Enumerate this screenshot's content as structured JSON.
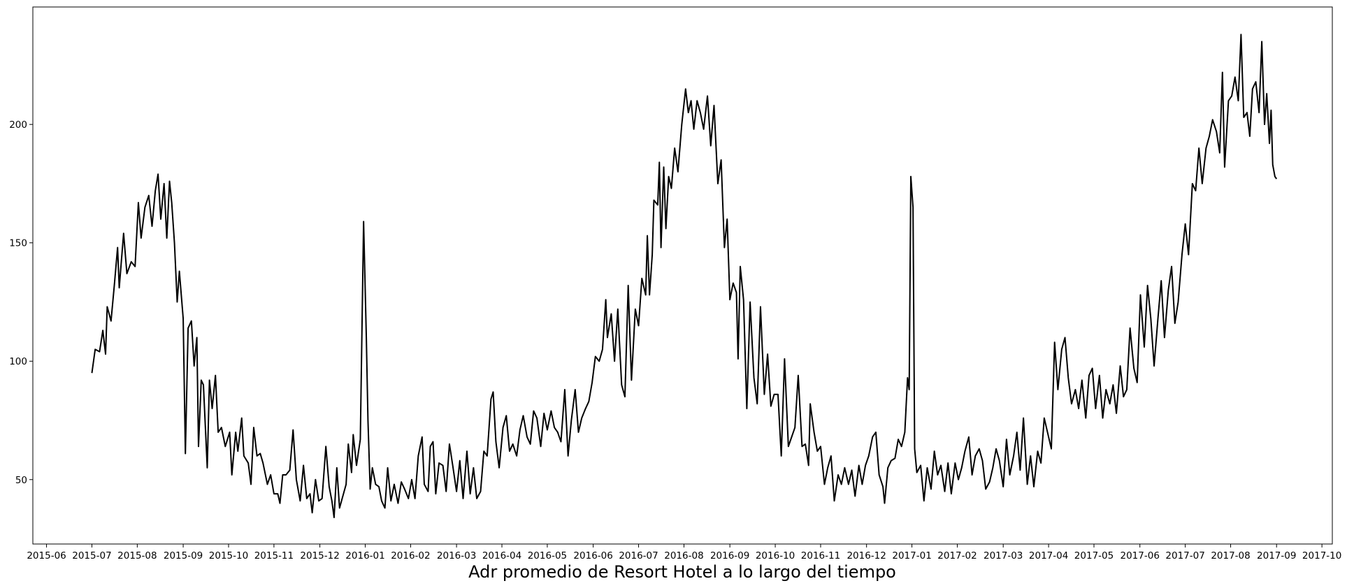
{
  "chart_data": {
    "type": "line",
    "xlabel": "Adr promedio de Resort Hotel a lo largo del tiempo",
    "color": "#000000",
    "xlim": [
      2015.392,
      2017.769
    ],
    "ylim": [
      22.8,
      249.6
    ],
    "xticks": [
      {
        "value": 2015.417,
        "label": "2015-06"
      },
      {
        "value": 2015.5,
        "label": "2015-07"
      },
      {
        "value": 2015.583,
        "label": "2015-08"
      },
      {
        "value": 2015.667,
        "label": "2015-09"
      },
      {
        "value": 2015.75,
        "label": "2015-10"
      },
      {
        "value": 2015.833,
        "label": "2015-11"
      },
      {
        "value": 2015.917,
        "label": "2015-12"
      },
      {
        "value": 2016.0,
        "label": "2016-01"
      },
      {
        "value": 2016.083,
        "label": "2016-02"
      },
      {
        "value": 2016.167,
        "label": "2016-03"
      },
      {
        "value": 2016.25,
        "label": "2016-04"
      },
      {
        "value": 2016.333,
        "label": "2016-05"
      },
      {
        "value": 2016.417,
        "label": "2016-06"
      },
      {
        "value": 2016.5,
        "label": "2016-07"
      },
      {
        "value": 2016.583,
        "label": "2016-08"
      },
      {
        "value": 2016.667,
        "label": "2016-09"
      },
      {
        "value": 2016.75,
        "label": "2016-10"
      },
      {
        "value": 2016.833,
        "label": "2016-11"
      },
      {
        "value": 2016.917,
        "label": "2016-12"
      },
      {
        "value": 2017.0,
        "label": "2017-01"
      },
      {
        "value": 2017.083,
        "label": "2017-02"
      },
      {
        "value": 2017.167,
        "label": "2017-03"
      },
      {
        "value": 2017.25,
        "label": "2017-04"
      },
      {
        "value": 2017.333,
        "label": "2017-05"
      },
      {
        "value": 2017.417,
        "label": "2017-06"
      },
      {
        "value": 2017.5,
        "label": "2017-07"
      },
      {
        "value": 2017.583,
        "label": "2017-08"
      },
      {
        "value": 2017.667,
        "label": "2017-09"
      },
      {
        "value": 2017.75,
        "label": "2017-10"
      }
    ],
    "yticks": [
      50,
      100,
      150,
      200
    ],
    "x": [
      2015.5,
      2015.506,
      2015.514,
      2015.52,
      2015.525,
      2015.528,
      2015.535,
      2015.541,
      2015.547,
      2015.55,
      2015.558,
      2015.564,
      2015.572,
      2015.579,
      2015.585,
      2015.59,
      2015.597,
      2015.604,
      2015.61,
      2015.616,
      2015.621,
      2015.626,
      2015.632,
      2015.637,
      2015.642,
      2015.646,
      2015.651,
      2015.656,
      2015.66,
      2015.667,
      2015.671,
      2015.676,
      2015.682,
      2015.687,
      2015.692,
      2015.695,
      2015.7,
      2015.704,
      2015.711,
      2015.715,
      2015.72,
      2015.726,
      2015.731,
      2015.737,
      2015.744,
      2015.752,
      2015.756,
      2015.763,
      2015.767,
      2015.774,
      2015.778,
      2015.786,
      2015.791,
      2015.796,
      2015.802,
      2015.808,
      2015.813,
      2015.821,
      2015.827,
      2015.833,
      2015.84,
      2015.844,
      2015.849,
      2015.855,
      2015.862,
      2015.868,
      2015.874,
      2015.881,
      2015.887,
      2015.893,
      2015.899,
      2015.903,
      2015.909,
      2015.915,
      2015.921,
      2015.928,
      2015.934,
      2015.939,
      2015.943,
      2015.948,
      2015.953,
      2015.959,
      2015.965,
      2015.969,
      2015.975,
      2015.978,
      2015.984,
      2015.991,
      2015.997,
      2016.002,
      2016.005,
      2016.009,
      2016.013,
      2016.019,
      2016.025,
      2016.03,
      2016.036,
      2016.041,
      2016.047,
      2016.053,
      2016.06,
      2016.066,
      2016.072,
      2016.079,
      2016.085,
      2016.091,
      2016.097,
      2016.104,
      2016.108,
      2016.115,
      2016.119,
      2016.124,
      2016.129,
      2016.135,
      2016.142,
      2016.148,
      2016.154,
      2016.16,
      2016.167,
      2016.173,
      2016.179,
      2016.186,
      2016.192,
      2016.198,
      2016.204,
      2016.211,
      2016.217,
      2016.223,
      2016.23,
      2016.234,
      2016.239,
      2016.245,
      2016.252,
      2016.258,
      2016.264,
      2016.27,
      2016.277,
      2016.283,
      2016.289,
      2016.296,
      2016.302,
      2016.308,
      2016.314,
      2016.321,
      2016.327,
      2016.333,
      2016.34,
      2016.346,
      2016.352,
      2016.358,
      2016.365,
      2016.371,
      2016.377,
      2016.384,
      2016.39,
      2016.396,
      2016.403,
      2016.409,
      2016.415,
      2016.421,
      2016.428,
      2016.434,
      2016.44,
      2016.443,
      2016.45,
      2016.456,
      2016.462,
      2016.469,
      2016.475,
      2016.481,
      2016.487,
      2016.494,
      2016.5,
      2016.506,
      2016.513,
      2016.516,
      2016.52,
      2016.525,
      2016.528,
      2016.535,
      2016.538,
      2016.541,
      2016.546,
      2016.55,
      2016.555,
      2016.56,
      2016.566,
      2016.572,
      2016.579,
      2016.586,
      2016.591,
      2016.596,
      2016.601,
      2016.607,
      2016.613,
      2016.619,
      2016.626,
      2016.632,
      2016.638,
      2016.645,
      2016.651,
      2016.657,
      2016.662,
      2016.667,
      2016.673,
      2016.679,
      2016.682,
      2016.686,
      2016.692,
      2016.698,
      2016.704,
      2016.711,
      2016.717,
      2016.723,
      2016.73,
      2016.736,
      2016.742,
      2016.748,
      2016.755,
      2016.761,
      2016.767,
      2016.774,
      2016.78,
      2016.786,
      2016.792,
      2016.799,
      2016.805,
      2016.811,
      2016.814,
      2016.821,
      2016.827,
      2016.833,
      2016.84,
      2016.846,
      2016.852,
      2016.858,
      2016.865,
      2016.871,
      2016.877,
      2016.884,
      2016.89,
      2016.896,
      2016.903,
      2016.909,
      2016.915,
      2016.921,
      2016.928,
      2016.934,
      2016.94,
      2016.947,
      2016.95,
      2016.956,
      2016.962,
      2016.969,
      2016.975,
      2016.981,
      2016.987,
      2016.992,
      2016.995,
      2016.998,
      2017.002,
      2017.005,
      2017.009,
      2017.016,
      2017.022,
      2017.028,
      2017.035,
      2017.041,
      2017.047,
      2017.053,
      2017.06,
      2017.066,
      2017.072,
      2017.079,
      2017.085,
      2017.091,
      2017.097,
      2017.104,
      2017.11,
      2017.116,
      2017.123,
      2017.129,
      2017.135,
      2017.142,
      2017.148,
      2017.154,
      2017.16,
      2017.167,
      2017.173,
      2017.179,
      2017.186,
      2017.192,
      2017.198,
      2017.204,
      2017.211,
      2017.217,
      2017.223,
      2017.23,
      2017.236,
      2017.242,
      2017.248,
      2017.255,
      2017.261,
      2017.267,
      2017.274,
      2017.28,
      2017.286,
      2017.292,
      2017.299,
      2017.305,
      2017.311,
      2017.318,
      2017.324,
      2017.33,
      2017.336,
      2017.343,
      2017.349,
      2017.355,
      2017.362,
      2017.368,
      2017.374,
      2017.381,
      2017.387,
      2017.393,
      2017.399,
      2017.406,
      2017.412,
      2017.418,
      2017.425,
      2017.431,
      2017.437,
      2017.443,
      2017.45,
      2017.456,
      2017.462,
      2017.469,
      2017.475,
      2017.481,
      2017.487,
      2017.494,
      2017.5,
      2017.506,
      2017.513,
      2017.519,
      2017.525,
      2017.531,
      2017.538,
      2017.544,
      2017.55,
      2017.557,
      2017.563,
      2017.568,
      2017.572,
      2017.579,
      2017.585,
      2017.591,
      2017.597,
      2017.602,
      2017.607,
      2017.613,
      2017.618,
      2017.623,
      2017.629,
      2017.635,
      2017.64,
      2017.645,
      2017.649,
      2017.654,
      2017.657,
      2017.66,
      2017.664,
      2017.667
    ],
    "values": [
      95,
      105,
      104,
      113,
      103,
      123,
      117,
      132,
      148,
      131,
      154,
      137,
      142,
      140,
      167,
      152,
      165,
      170,
      157,
      172,
      179,
      160,
      175,
      152,
      176,
      167,
      150,
      125,
      138,
      118,
      61,
      114,
      117,
      98,
      110,
      64,
      92,
      90,
      55,
      92,
      80,
      94,
      70,
      72,
      64,
      70,
      52,
      70,
      62,
      76,
      60,
      57,
      48,
      72,
      60,
      61,
      57,
      48,
      52,
      44,
      44,
      40,
      52,
      52,
      54,
      71,
      50,
      41,
      56,
      42,
      44,
      36,
      50,
      41,
      42,
      64,
      47,
      41,
      34,
      55,
      38,
      43,
      48,
      65,
      53,
      69,
      56,
      67,
      159,
      110,
      75,
      46,
      55,
      48,
      47,
      41,
      38,
      55,
      41,
      48,
      40,
      49,
      46,
      42,
      50,
      42,
      60,
      68,
      48,
      45,
      64,
      66,
      44,
      57,
      56,
      45,
      65,
      56,
      45,
      58,
      42,
      62,
      44,
      55,
      42,
      45,
      62,
      60,
      84,
      87,
      66,
      55,
      72,
      77,
      62,
      65,
      60,
      71,
      77,
      68,
      65,
      79,
      76,
      64,
      78,
      71,
      79,
      72,
      70,
      66,
      88,
      60,
      75,
      88,
      70,
      76,
      80,
      83,
      91,
      102,
      100,
      105,
      126,
      110,
      120,
      100,
      122,
      90,
      85,
      132,
      92,
      122,
      115,
      135,
      128,
      153,
      128,
      145,
      168,
      166,
      184,
      148,
      182,
      156,
      178,
      173,
      190,
      180,
      200,
      215,
      205,
      210,
      198,
      210,
      205,
      198,
      212,
      191,
      208,
      175,
      185,
      148,
      160,
      126,
      133,
      129,
      101,
      140,
      126,
      80,
      125,
      93,
      82,
      123,
      86,
      103,
      81,
      86,
      86,
      60,
      101,
      64,
      68,
      72,
      94,
      64,
      65,
      56,
      82,
      70,
      62,
      64,
      48,
      55,
      60,
      41,
      52,
      48,
      55,
      48,
      54,
      43,
      56,
      48,
      56,
      60,
      68,
      70,
      52,
      47,
      40,
      55,
      58,
      59,
      67,
      64,
      70,
      93,
      88,
      178,
      165,
      63,
      53,
      56,
      41,
      55,
      46,
      62,
      52,
      56,
      45,
      57,
      44,
      57,
      50,
      55,
      62,
      68,
      52,
      60,
      63,
      58,
      46,
      49,
      55,
      63,
      58,
      47,
      67,
      52,
      60,
      70,
      54,
      76,
      48,
      60,
      47,
      62,
      57,
      76,
      70,
      63,
      108,
      88,
      105,
      110,
      93,
      82,
      88,
      80,
      92,
      76,
      94,
      97,
      80,
      94,
      76,
      88,
      82,
      90,
      78,
      98,
      85,
      88,
      114,
      97,
      91,
      128,
      106,
      132,
      118,
      98,
      118,
      134,
      110,
      130,
      140,
      116,
      125,
      145,
      158,
      145,
      175,
      172,
      190,
      175,
      190,
      195,
      202,
      197,
      188,
      222,
      182,
      210,
      212,
      220,
      210,
      238,
      203,
      205,
      195,
      215,
      218,
      205,
      235,
      200,
      213,
      192,
      206,
      183,
      178,
      177
    ]
  }
}
